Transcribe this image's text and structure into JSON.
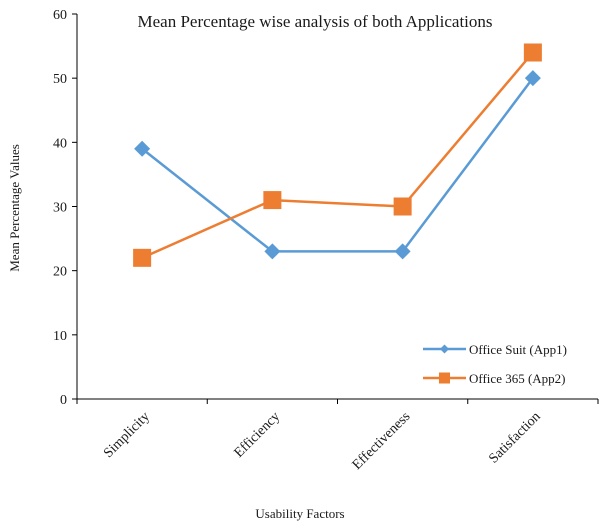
{
  "chart_data": {
    "type": "line",
    "title": "Mean Percentage wise analysis of both Applications",
    "xlabel": "Usability Factors",
    "ylabel": "Mean Percentage Values",
    "categories": [
      "Simplicity",
      "Efficiency",
      "Effectiveness",
      "Satisfaction"
    ],
    "ylim": [
      0,
      60
    ],
    "yticks": [
      0,
      10,
      20,
      30,
      40,
      50,
      60
    ],
    "grid": false,
    "legend_position": "bottom-right",
    "series": [
      {
        "name": "Office Suit (App1)",
        "values": [
          39,
          23,
          23,
          50
        ],
        "color": "#5b9bd5",
        "marker": "diamond"
      },
      {
        "name": "Office 365 (App2)",
        "values": [
          22,
          31,
          30,
          54
        ],
        "color": "#ed7d31",
        "marker": "square"
      }
    ]
  }
}
